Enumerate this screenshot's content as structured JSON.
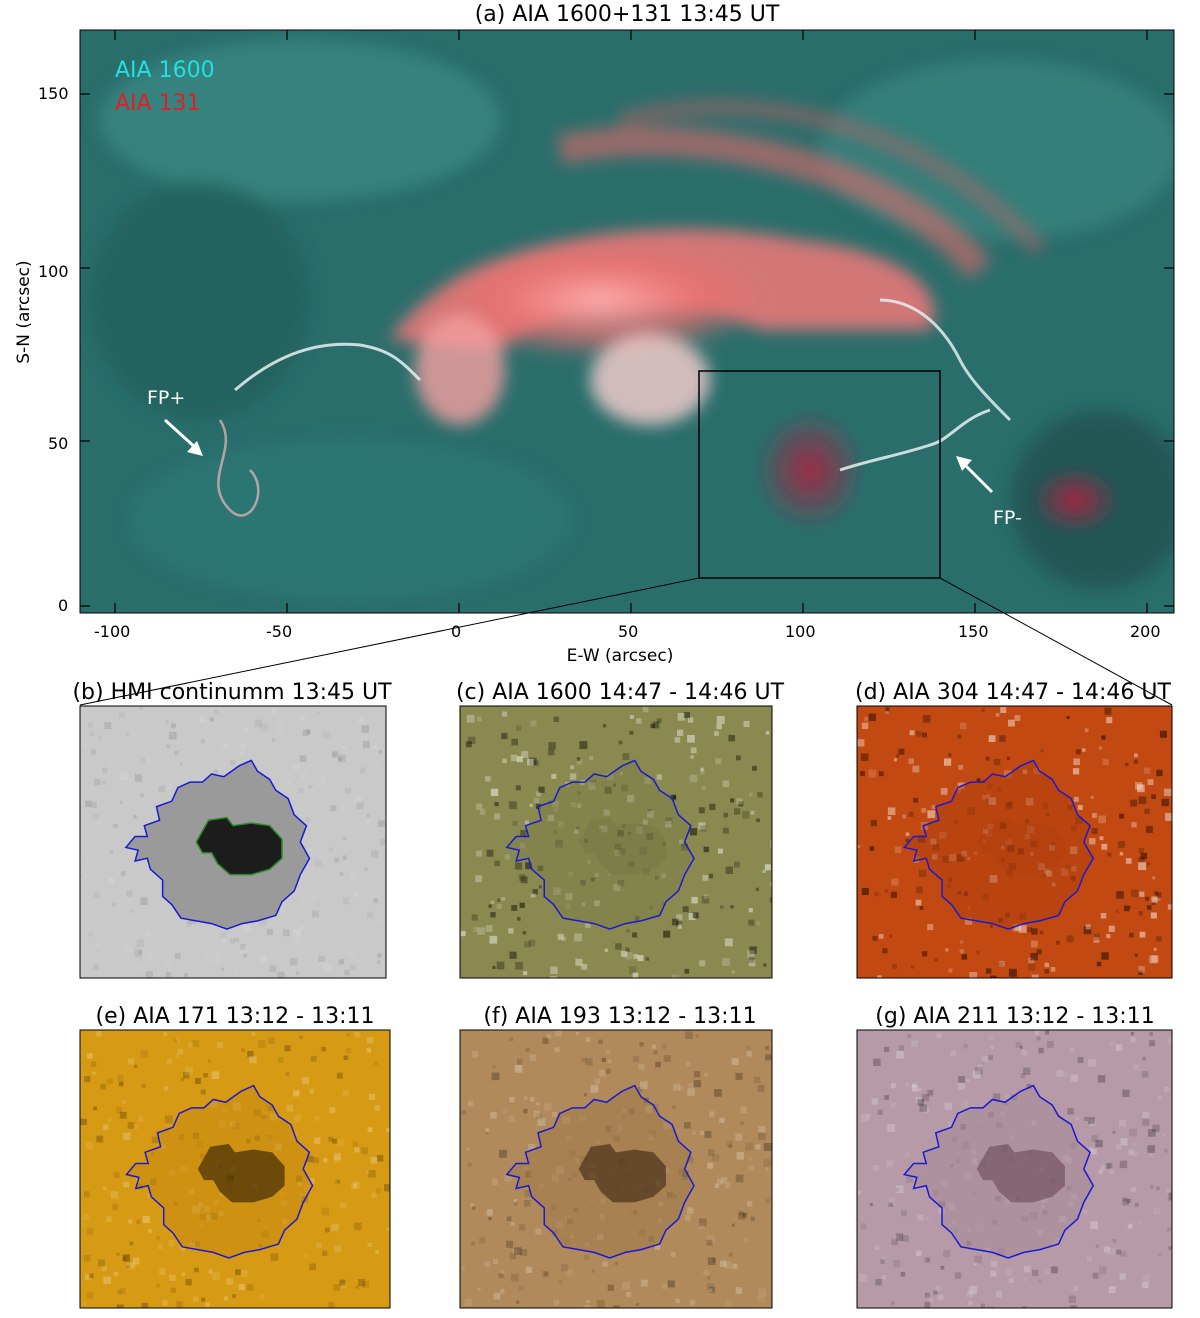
{
  "main_panel": {
    "title": "(a) AIA 1600+131 13:45 UT",
    "xlabel": "E-W (arcsec)",
    "ylabel": "S-N (arcsec)",
    "x_ticks": [
      "-100",
      "-50",
      "0",
      "50",
      "100",
      "150",
      "200"
    ],
    "y_ticks": [
      "0",
      "50",
      "100",
      "150"
    ],
    "legend": [
      {
        "label": "AIA 1600",
        "color": "#22e0e0"
      },
      {
        "label": "AIA 131",
        "color": "#e02020"
      }
    ],
    "annotations": [
      {
        "label": "FP+"
      },
      {
        "label": "FP-"
      }
    ],
    "colors": {
      "background": "#2a6e6c",
      "flare": "#f07878",
      "accent": "#3fd0d0"
    }
  },
  "sub_panels": [
    {
      "id": "b",
      "title": "(b) HMI continumm 13:45 UT",
      "bg": "#c9c9c9",
      "shade": "#9a9a9a",
      "core": "#151515"
    },
    {
      "id": "c",
      "title": "(c) AIA 1600 14:47 - 14:46 UT",
      "bg": "#8a8a50",
      "shade": "#7d7d48",
      "core": "#6b6b3a"
    },
    {
      "id": "d",
      "title": "(d) AIA 304 14:47 - 14:46 UT",
      "bg": "#c24a12",
      "shade": "#b2400e",
      "core": "#a5390b"
    },
    {
      "id": "e",
      "title": "(e) AIA 171 13:12 - 13:11",
      "bg": "#d79a14",
      "shade": "#c88a10",
      "core": "#2a1a05"
    },
    {
      "id": "f",
      "title": "(f) AIA 193 13:12 - 13:11",
      "bg": "#b08a5a",
      "shade": "#a07a4a",
      "core": "#3a2410"
    },
    {
      "id": "g",
      "title": "(g) AIA 211 13:12 - 13:11",
      "bg": "#b69aa8",
      "shade": "#a88a98",
      "core": "#6a4a5a"
    }
  ],
  "contour_colors": {
    "penumbra": "#1a1ad0",
    "umbra": "#2a8a2a"
  }
}
